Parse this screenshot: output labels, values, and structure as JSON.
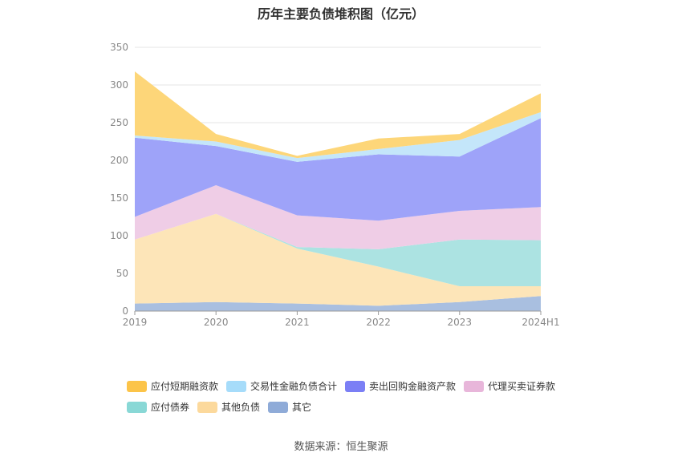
{
  "chart_data": {
    "type": "area",
    "stacked": true,
    "title": "历年主要负债堆积图（亿元）",
    "categories": [
      "2019",
      "2020",
      "2021",
      "2022",
      "2023",
      "2024H1"
    ],
    "yticks": [
      "0",
      "50",
      "100",
      "150",
      "200",
      "250",
      "300",
      "350"
    ],
    "ylim": [
      0,
      350
    ],
    "grid": true,
    "legend_position": "bottom",
    "series": [
      {
        "name": "其它",
        "color": "#a9bfe0",
        "legend_color": "#8fabd8",
        "values": [
          10,
          12,
          10,
          7,
          12,
          20
        ]
      },
      {
        "name": "其他负债",
        "color": "#fde5b8",
        "legend_color": "#fcd99c",
        "values": [
          85,
          117,
          73,
          52,
          21,
          13
        ]
      },
      {
        "name": "应付债券",
        "color": "#ace3e2",
        "legend_color": "#89d8d6",
        "values": [
          0,
          0,
          2,
          23,
          62,
          61
        ]
      },
      {
        "name": "代理买卖证券款",
        "color": "#efcde6",
        "legend_color": "#e8b6da",
        "values": [
          30,
          38,
          42,
          38,
          38,
          44
        ]
      },
      {
        "name": "卖出回购金融资产款",
        "color": "#9ea3f9",
        "legend_color": "#7b7ff5",
        "values": [
          105,
          52,
          71,
          88,
          72,
          118
        ]
      },
      {
        "name": "交易性金融负债合计",
        "color": "#c4e6fa",
        "legend_color": "#a6dcfa",
        "values": [
          3,
          6,
          5,
          7,
          22,
          8
        ]
      },
      {
        "name": "应付短期融资款",
        "color": "#fdd679",
        "legend_color": "#fcc449",
        "values": [
          85,
          10,
          3,
          14,
          8,
          25
        ]
      }
    ]
  },
  "footer": {
    "source": "数据来源：恒生聚源"
  }
}
